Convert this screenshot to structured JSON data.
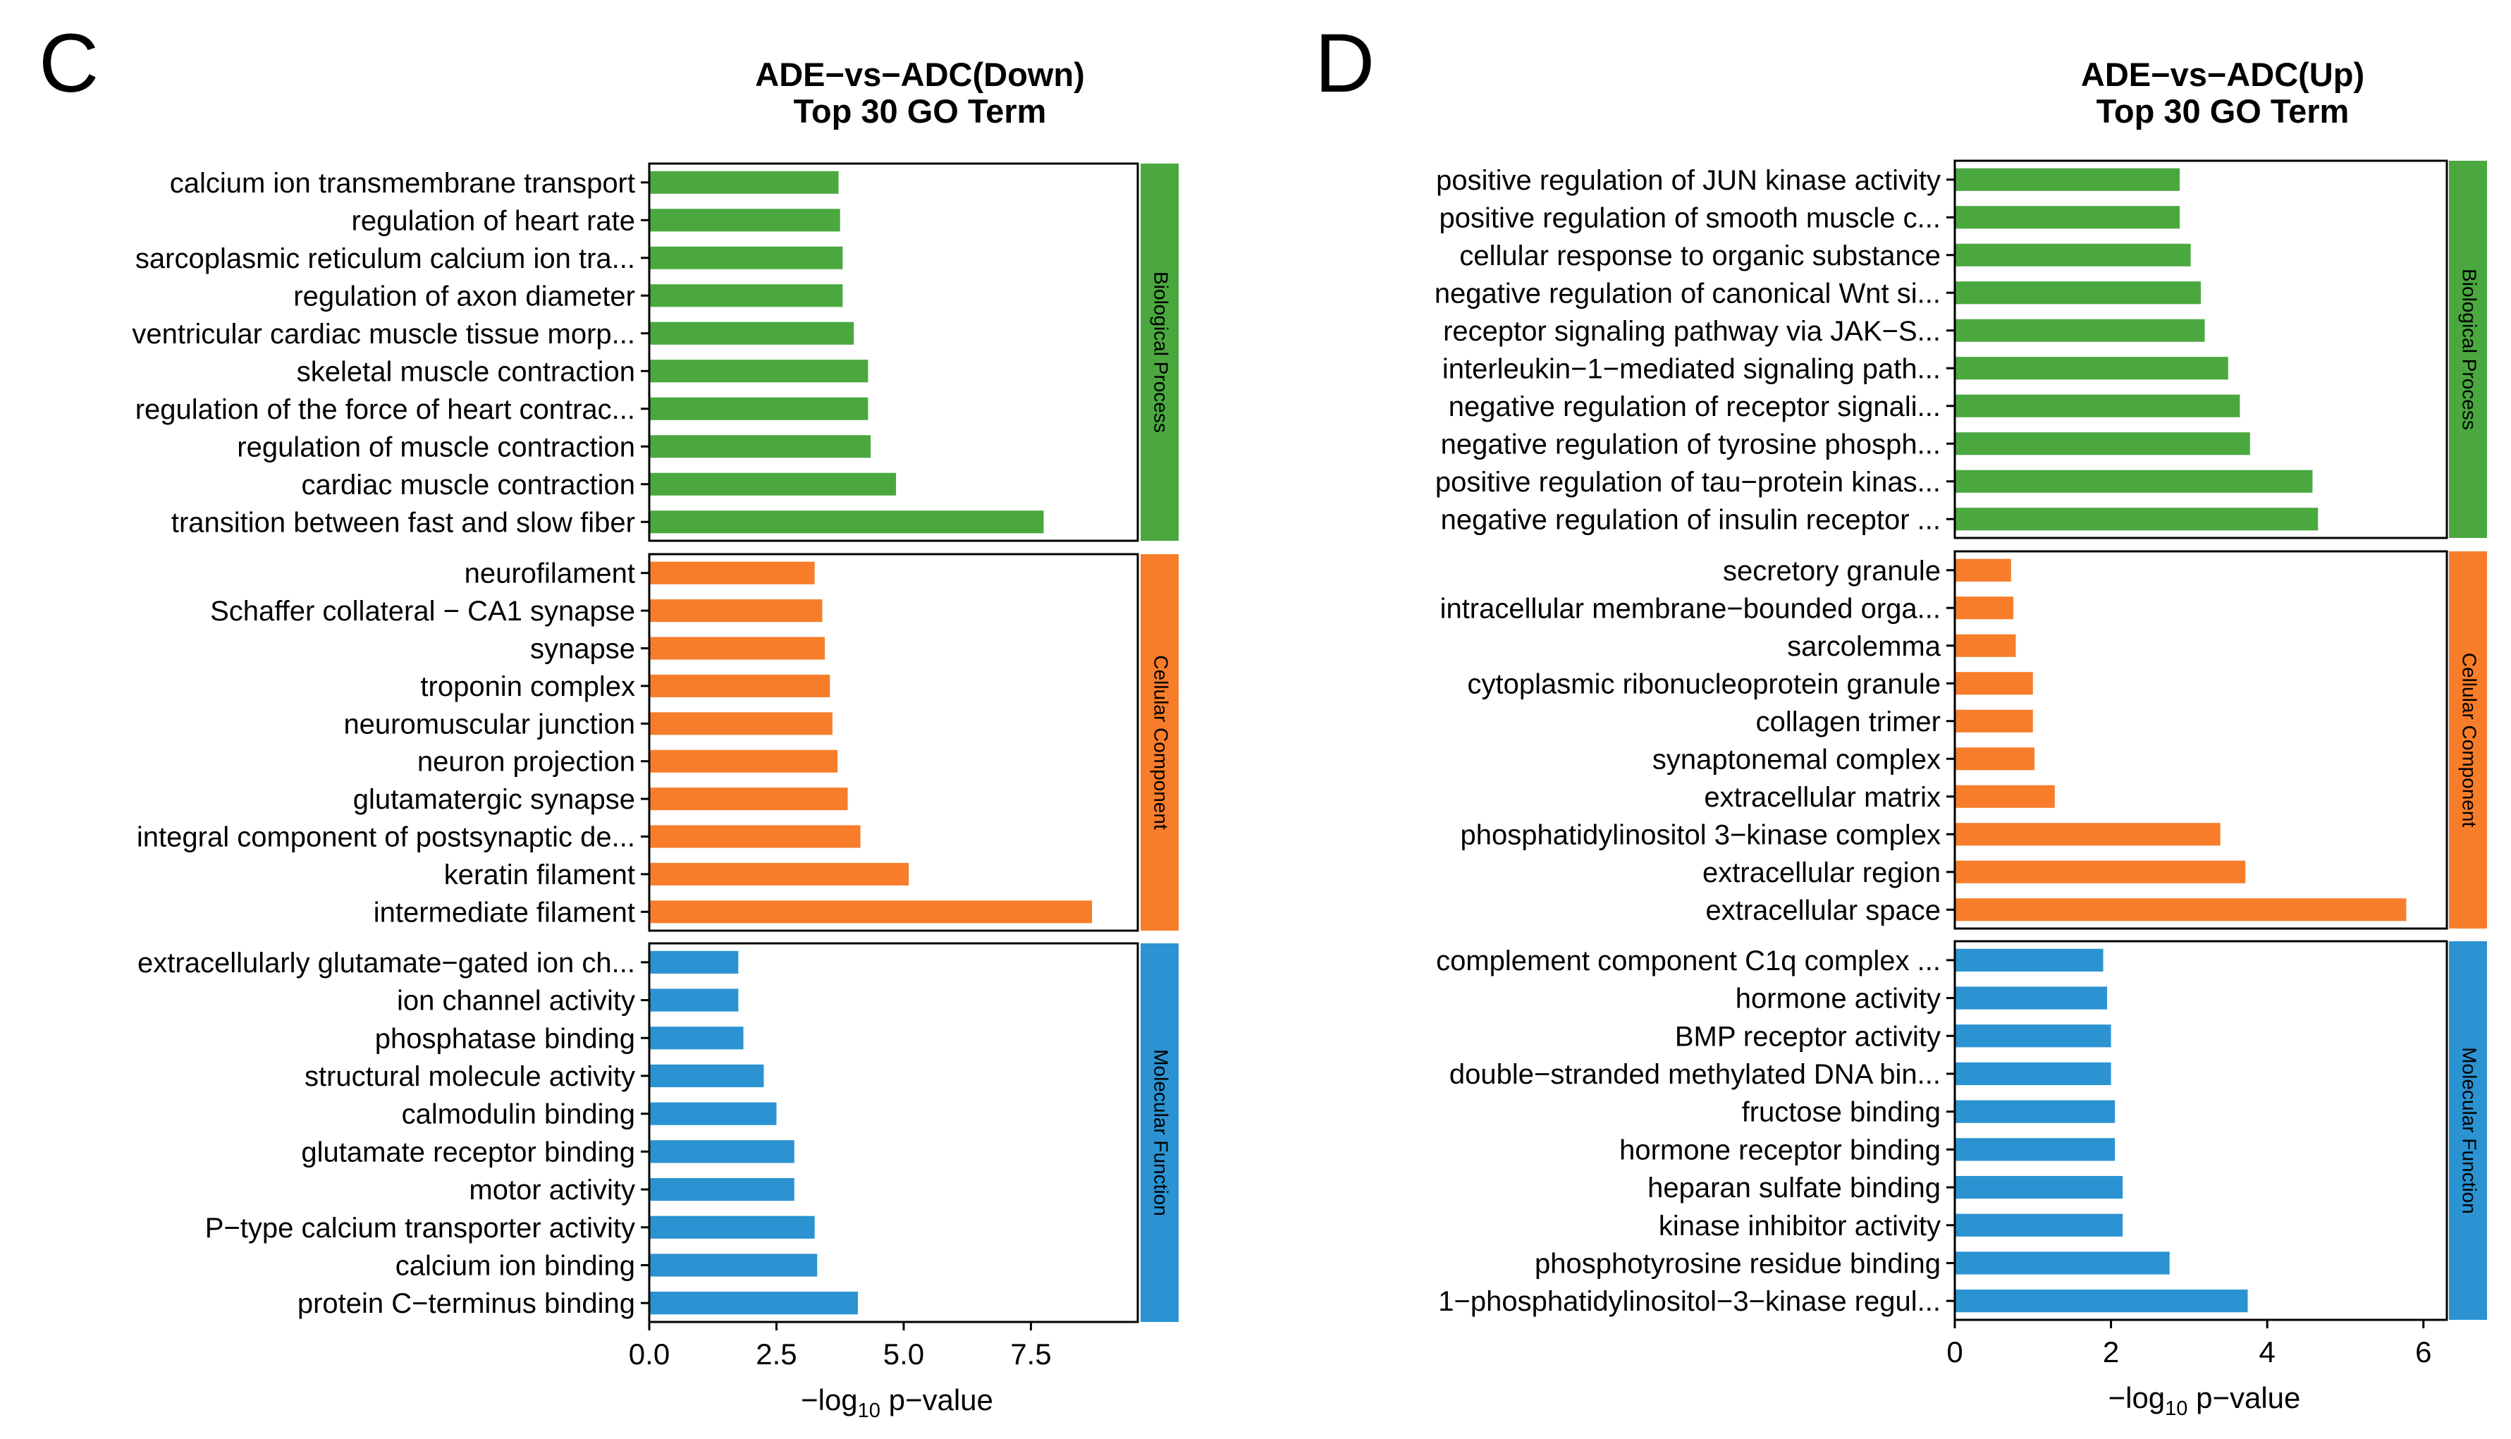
{
  "colors": {
    "bp": "#4aa83f",
    "cc": "#f87d2a",
    "mf": "#2b93d1",
    "frame": "#000000",
    "text": "#000000"
  },
  "chart_data": [
    {
      "panel_letter": "C",
      "type": "bar",
      "orientation": "horizontal",
      "title": [
        "ADE−vs−ADC(Down)",
        "Top 30 GO Term"
      ],
      "xlabel_prefix": "−log",
      "xlabel_sub": "10",
      "xlabel_suffix": " p−value",
      "xlim": [
        0,
        9.6
      ],
      "xticks": [
        0,
        2.5,
        5,
        7.5
      ],
      "xtick_labels": [
        "0.0",
        "2.5",
        "5.0",
        "7.5"
      ],
      "groups": [
        {
          "name": "Biological Process",
          "color_key": "bp",
          "categories": [
            "calcium ion transmembrane transport",
            "regulation of heart rate",
            "sarcoplasmic reticulum calcium ion tra...",
            "regulation of axon diameter",
            "ventricular cardiac muscle tissue morp...",
            "skeletal muscle contraction",
            "regulation of the force of heart contrac...",
            "regulation of muscle contraction",
            "cardiac muscle contraction",
            "transition between fast and slow fiber"
          ],
          "values": [
            3.72,
            3.75,
            3.8,
            3.8,
            4.02,
            4.3,
            4.3,
            4.35,
            4.85,
            7.75
          ]
        },
        {
          "name": "Cellular Component",
          "color_key": "cc",
          "categories": [
            "neurofilament",
            "Schaffer collateral − CA1 synapse",
            "synapse",
            "troponin complex",
            "neuromuscular junction",
            "neuron projection",
            "glutamatergic synapse",
            "integral component of postsynaptic de...",
            "keratin filament",
            "intermediate filament"
          ],
          "values": [
            3.25,
            3.4,
            3.45,
            3.55,
            3.6,
            3.7,
            3.9,
            4.15,
            5.1,
            8.7
          ]
        },
        {
          "name": "Molecular Function",
          "color_key": "mf",
          "categories": [
            "extracellularly glutamate−gated ion ch...",
            "ion channel activity",
            "phosphatase binding",
            "structural molecule activity",
            "calmodulin binding",
            "glutamate receptor binding",
            "motor activity",
            "P−type calcium transporter activity",
            "calcium ion binding",
            "protein C−terminus binding"
          ],
          "values": [
            1.75,
            1.75,
            1.85,
            2.25,
            2.5,
            2.85,
            2.85,
            3.25,
            3.3,
            4.1
          ]
        }
      ]
    },
    {
      "panel_letter": "D",
      "type": "bar",
      "orientation": "horizontal",
      "title": [
        "ADE−vs−ADC(Up)",
        "Top 30 GO Term"
      ],
      "xlabel_prefix": "−log",
      "xlabel_sub": "10",
      "xlabel_suffix": " p−value",
      "xlim": [
        0,
        6.3
      ],
      "xticks": [
        0,
        2,
        4,
        6
      ],
      "xtick_labels": [
        "0",
        "2",
        "4",
        "6"
      ],
      "groups": [
        {
          "name": "Biological Process",
          "color_key": "bp",
          "categories": [
            "positive regulation of JUN kinase activity",
            "positive regulation of smooth muscle c...",
            "cellular response to organic substance",
            "negative regulation of canonical Wnt si...",
            "receptor signaling pathway via JAK−S...",
            "interleukin−1−mediated signaling path...",
            "negative regulation of receptor signali...",
            "negative regulation of tyrosine phosph...",
            "positive regulation of tau−protein kinas...",
            "negative regulation of insulin receptor ..."
          ],
          "values": [
            2.88,
            2.88,
            3.02,
            3.15,
            3.2,
            3.5,
            3.65,
            3.78,
            4.58,
            4.65
          ]
        },
        {
          "name": "Cellular Component",
          "color_key": "cc",
          "categories": [
            "secretory granule",
            "intracellular membrane−bounded orga...",
            "sarcolemma",
            "cytoplasmic ribonucleoprotein granule",
            "collagen trimer",
            "synaptonemal complex",
            "extracellular matrix",
            "phosphatidylinositol 3−kinase complex",
            "extracellular region",
            "extracellular space"
          ],
          "values": [
            0.72,
            0.75,
            0.78,
            1.0,
            1.0,
            1.02,
            1.28,
            3.4,
            3.72,
            5.78
          ]
        },
        {
          "name": "Molecular Function",
          "color_key": "mf",
          "categories": [
            "complement component C1q complex ...",
            "hormone activity",
            "BMP receptor activity",
            "double−stranded methylated DNA bin...",
            "fructose binding",
            "hormone receptor binding",
            "heparan sulfate binding",
            "kinase inhibitor activity",
            "phosphotyrosine residue binding",
            "1−phosphatidylinositol−3−kinase regul..."
          ],
          "values": [
            1.9,
            1.95,
            2.0,
            2.0,
            2.05,
            2.05,
            2.15,
            2.15,
            2.75,
            3.75
          ]
        }
      ]
    }
  ]
}
